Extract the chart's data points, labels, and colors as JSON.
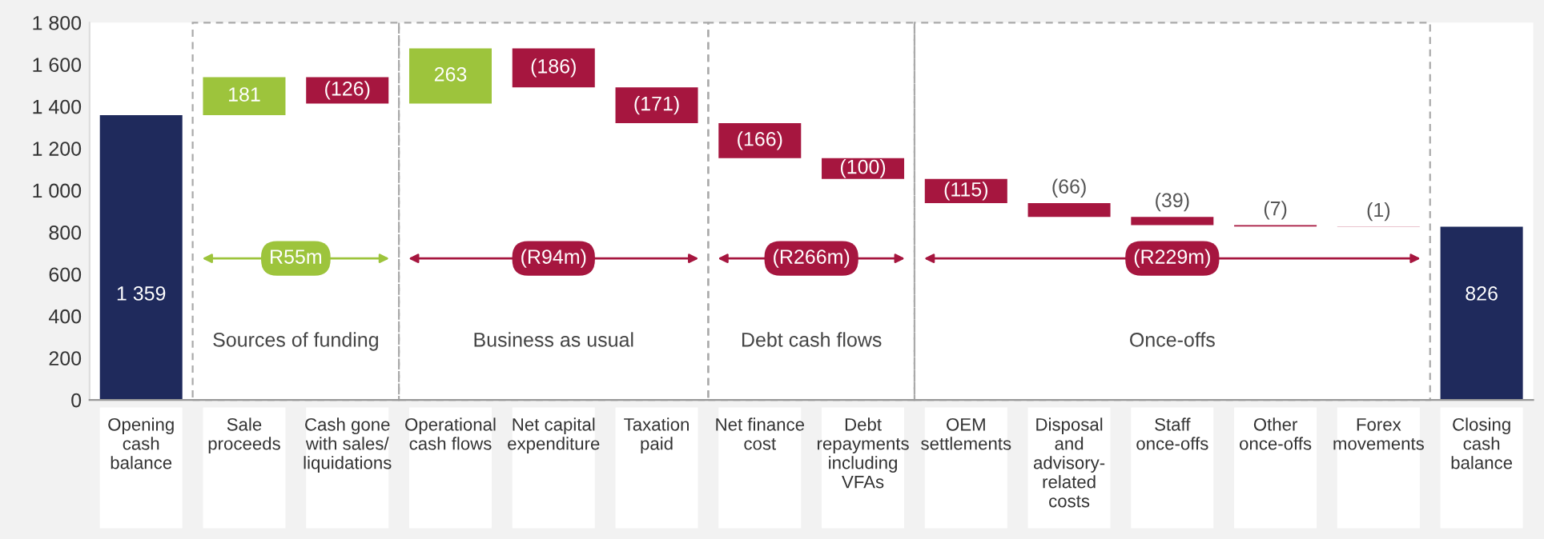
{
  "chart_data": {
    "type": "bar",
    "categories": [
      "Opening\ncash\nbalance",
      "Sale\nproceeds",
      "Cash gone\nwith sales/\nliquidations",
      "Operational\ncash flows",
      "Net capital\nexpenditure",
      "Taxation\npaid",
      "Net finance\ncost",
      "Debt\nrepayments\nincluding\nVFAs",
      "OEM\nsettlements",
      "Disposal\nand\nadvisory-\nrelated\ncosts",
      "Staff\nonce-offs",
      "Other\nonce-offs",
      "Forex\nmovements",
      "Closing\ncash\nbalance"
    ],
    "values": [
      1359,
      181,
      -126,
      263,
      -186,
      -171,
      -166,
      -100,
      -115,
      -66,
      -39,
      -7,
      -1,
      826
    ],
    "base": [
      0,
      1359,
      1540,
      1414,
      1677,
      1491,
      1320,
      1154,
      1054,
      939,
      873,
      834,
      827,
      0
    ],
    "colors": [
      "#1f2a5c",
      "#9dc43c",
      "#a6163f",
      "#9dc43c",
      "#a6163f",
      "#a6163f",
      "#a6163f",
      "#a6163f",
      "#a6163f",
      "#a6163f",
      "#a6163f",
      "#a6163f",
      "#a6163f",
      "#1f2a5c"
    ],
    "value_labels": [
      "1 359",
      "181",
      "(126)",
      "263",
      "(186)",
      "(171)",
      "(166)",
      "(100)",
      "(115)",
      "(66)",
      "(39)",
      "(7)",
      "(1)",
      "826"
    ],
    "ylim": [
      0,
      1800
    ],
    "yticks": [
      0,
      200,
      400,
      600,
      800,
      {
        "value": 1000,
        "label": "1 000"
      },
      {
        "value": 1200,
        "label": "1 200"
      },
      {
        "value": 1400,
        "label": "1 400"
      },
      {
        "value": 1600,
        "label": "1 600"
      },
      {
        "value": 1800,
        "label": "1 800"
      }
    ],
    "annotations": [
      "Sources of funding",
      "R55m",
      "Business as usual",
      "(R94m)",
      "Debt cash flows",
      "(R266m)",
      "Once-offs",
      "(R229m)"
    ],
    "grid": false
  }
}
